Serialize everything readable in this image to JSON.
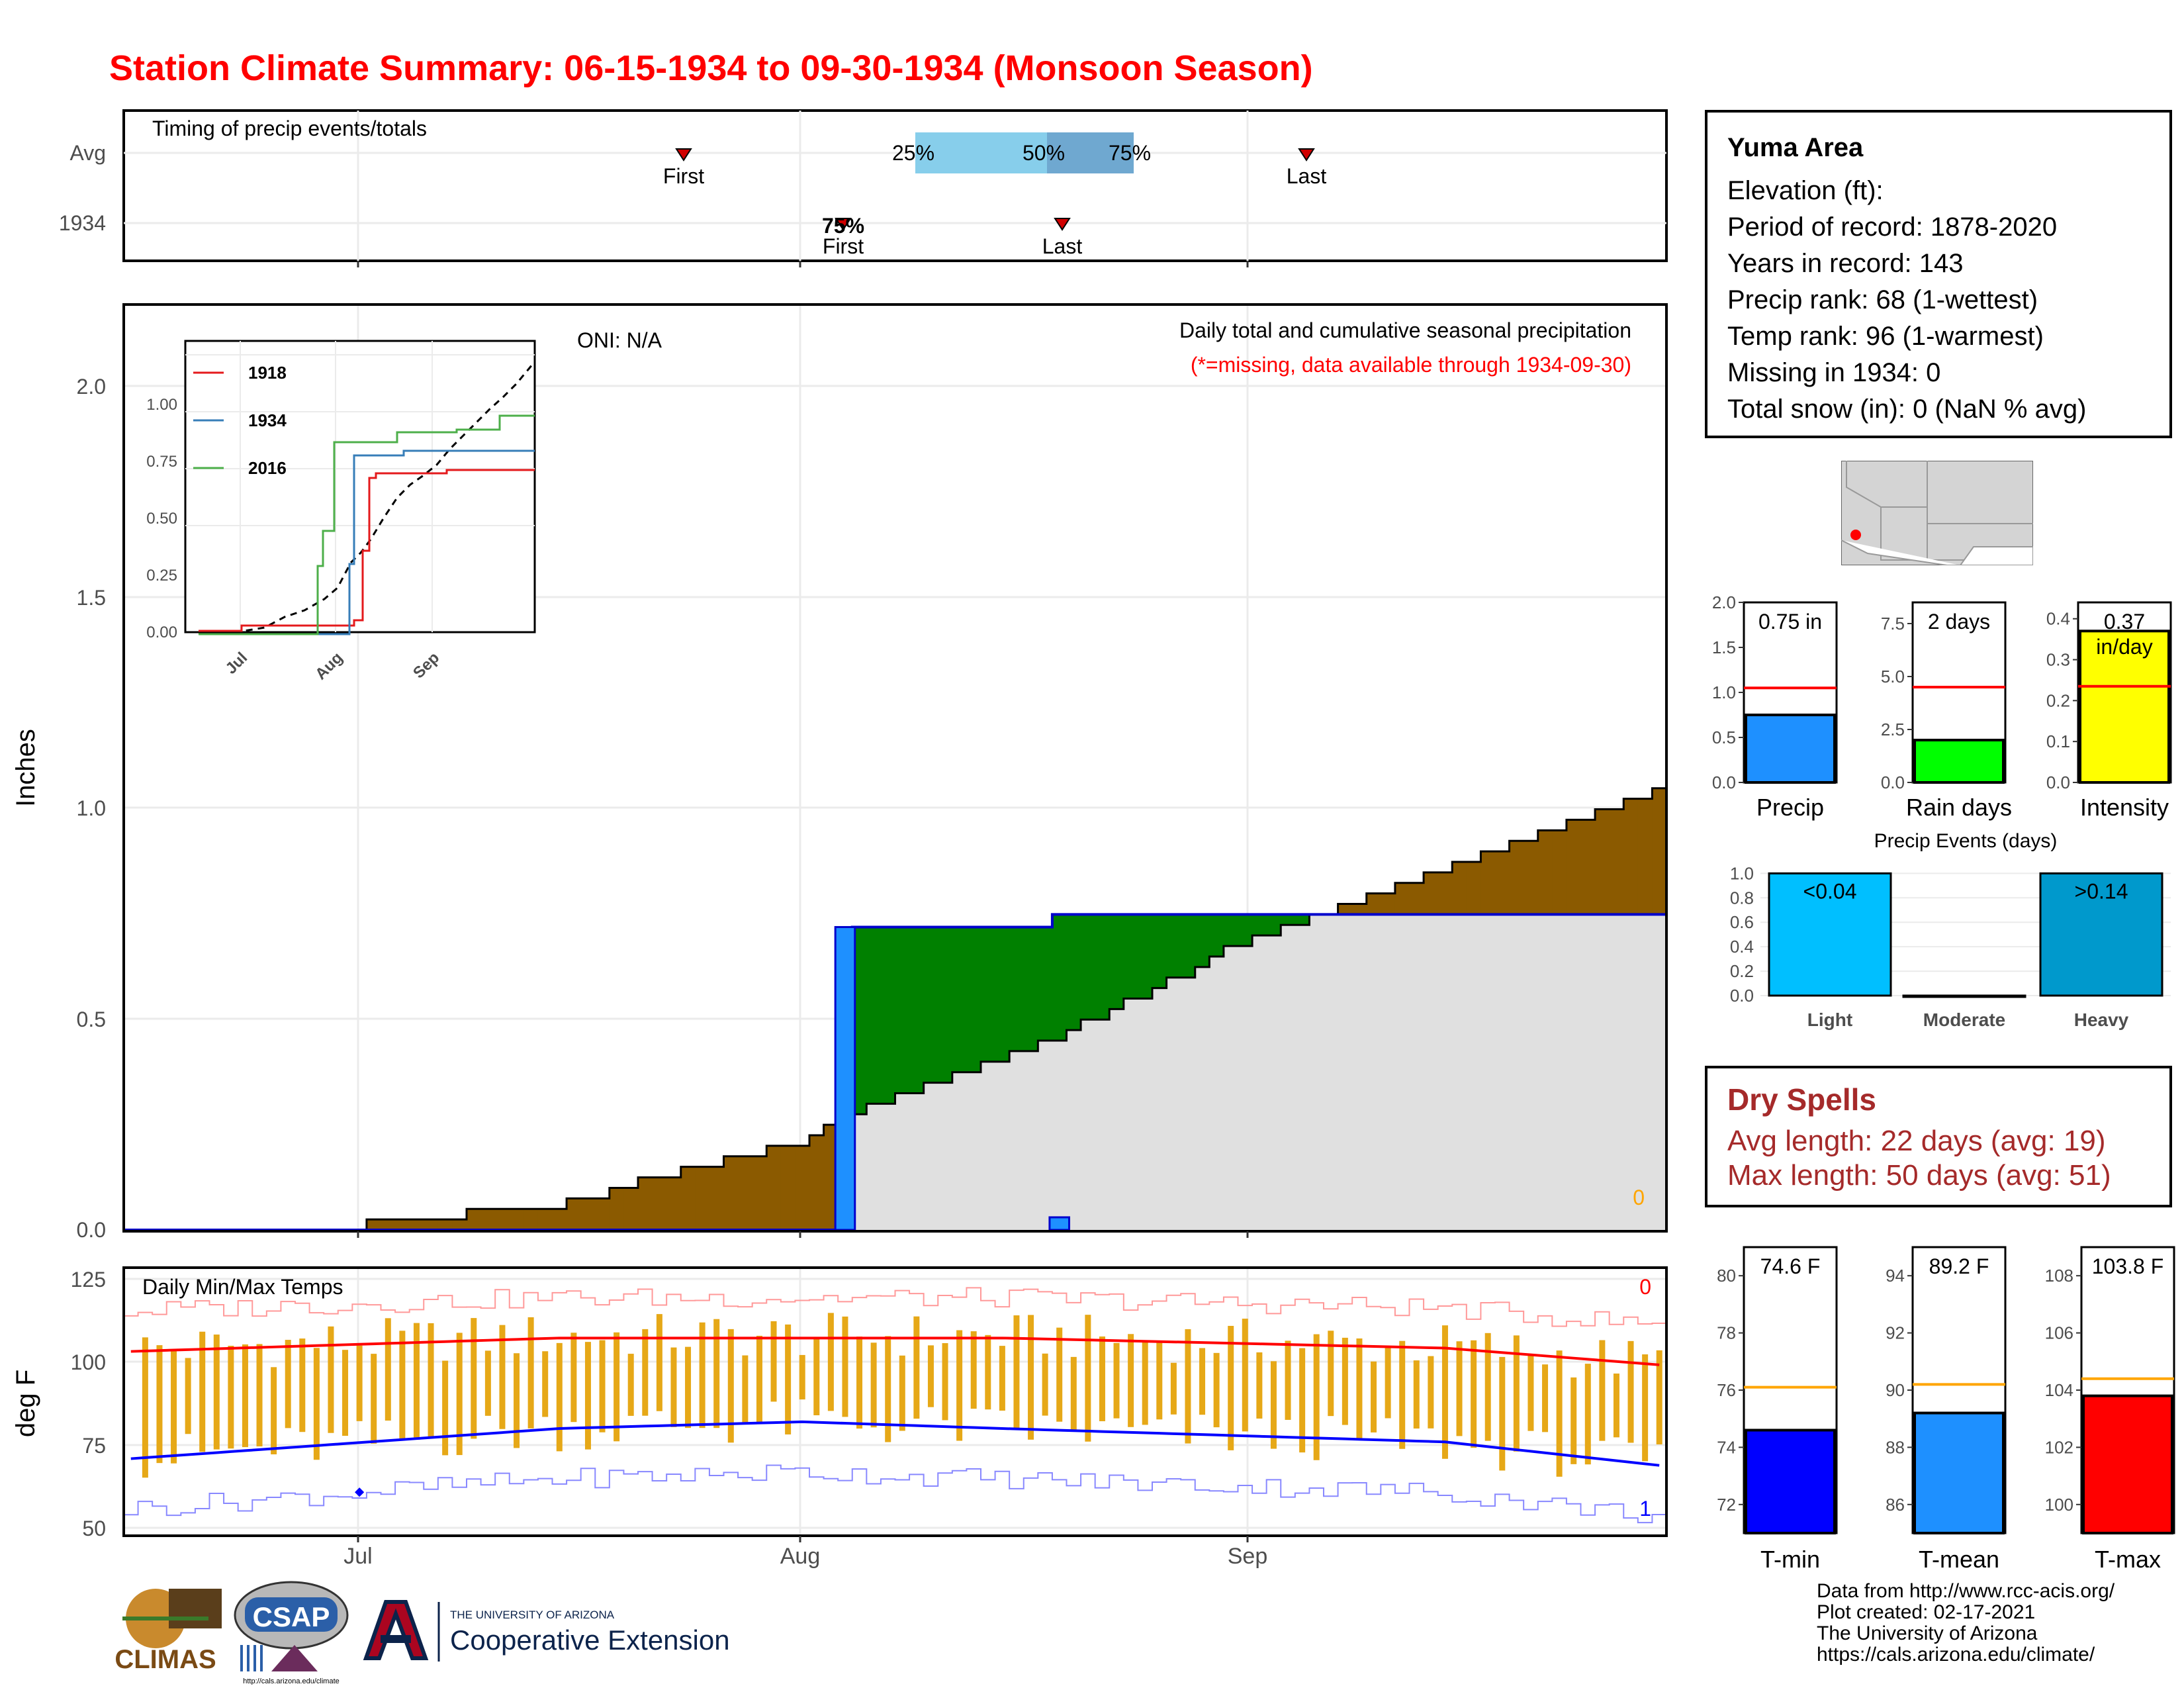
{
  "title": "Station Climate Summary: 06-15-1934 to 09-30-1934 (Monsoon Season)",
  "timing": {
    "label": "Timing of precip events/totals",
    "rows": [
      "Avg",
      "1934"
    ],
    "avg": {
      "first_label": "First",
      "last_label": "Last",
      "pct25": "25%",
      "pct50": "50%",
      "pct75": "75%"
    },
    "y1934": {
      "first_label": "First",
      "last_label": "Last",
      "overlap_label": "75%"
    }
  },
  "months": [
    "Jul",
    "Aug",
    "Sep"
  ],
  "precip_panel": {
    "ylabel": "Inches",
    "yticks": [
      "0.0",
      "0.5",
      "1.0",
      "1.5",
      "2.0"
    ],
    "oni": "ONI: N/A",
    "desc": "Daily total and cumulative seasonal precipitation",
    "missing_note": "(*=missing, data available through 1934-09-30)",
    "missing_count": "0"
  },
  "inset": {
    "yticks": [
      "0.00",
      "0.25",
      "0.50",
      "0.75",
      "1.00"
    ],
    "xticks": [
      "Jul",
      "Aug",
      "Sep"
    ],
    "legend": [
      {
        "name": "1918",
        "color": "#e41a1c"
      },
      {
        "name": "1934",
        "color": "#377eb8"
      },
      {
        "name": "2016",
        "color": "#4daf4a"
      }
    ]
  },
  "temp_panel": {
    "label": "Daily Min/Max Temps",
    "ylabel": "deg F",
    "yticks": [
      "50",
      "75",
      "100",
      "125"
    ],
    "max_missing": "0",
    "min_missing": "1"
  },
  "station": {
    "name": "Yuma Area",
    "elevation": "Elevation (ft):",
    "period": "Period of record: 1878-2020",
    "years": "Years in record: 143",
    "precip_rank": "Precip rank: 68 (1-wettest)",
    "temp_rank": "Temp rank: 96 (1-warmest)",
    "missing": "Missing in 1934: 0",
    "snow": "Total snow (in): 0 (NaN % avg)"
  },
  "summary_bars": [
    {
      "label": "Precip",
      "value_text": "0.75 in",
      "yticks": [
        "0.0",
        "0.5",
        "1.0",
        "1.5",
        "2.0"
      ],
      "ymin": 0,
      "ymax": 2.0,
      "value": 0.75,
      "avg": 1.05,
      "color": "#1e90ff"
    },
    {
      "label": "Rain days",
      "value_text": "2 days",
      "yticks": [
        "0.0",
        "2.5",
        "5.0",
        "7.5"
      ],
      "ymin": 0,
      "ymax": 8.5,
      "value": 2,
      "avg": 4.5,
      "color": "#00ff00"
    },
    {
      "label": "Intensity",
      "value_text": "0.37",
      "value_text2": "in/day",
      "yticks": [
        "0.0",
        "0.1",
        "0.2",
        "0.3",
        "0.4"
      ],
      "ymin": 0,
      "ymax": 0.44,
      "value": 0.37,
      "avg": 0.235,
      "color": "#ffff00"
    }
  ],
  "events": {
    "title": "Precip Events (days)",
    "yticks": [
      "0.0",
      "0.2",
      "0.4",
      "0.6",
      "0.8",
      "1.0"
    ],
    "bars": [
      {
        "label": "Light",
        "value_text": "<0.04",
        "value": 1,
        "color": "#00bfff"
      },
      {
        "label": "Moderate",
        "value_text": "",
        "value": 0,
        "color": "#00bfff"
      },
      {
        "label": "Heavy",
        "value_text": ">0.14",
        "value": 1,
        "color": "#0099cc"
      }
    ]
  },
  "dry_spells": {
    "title": "Dry Spells",
    "avg": "Avg length: 22 days (avg: 19)",
    "max": "Max length: 50 days (avg: 51)"
  },
  "temp_bars": [
    {
      "label": "T-min",
      "value_text": "74.6 F",
      "yticks": [
        "72",
        "74",
        "76",
        "78",
        "80"
      ],
      "ymin": 71,
      "ymax": 81,
      "value": 74.6,
      "avg": 76.1,
      "color": "#0000ff"
    },
    {
      "label": "T-mean",
      "value_text": "89.2 F",
      "yticks": [
        "86",
        "88",
        "90",
        "92",
        "94"
      ],
      "ymin": 85,
      "ymax": 95,
      "value": 89.2,
      "avg": 90.2,
      "color": "#1e90ff"
    },
    {
      "label": "T-max",
      "value_text": "103.8 F",
      "yticks": [
        "100",
        "102",
        "104",
        "106",
        "108"
      ],
      "ymin": 99,
      "ymax": 109,
      "value": 103.8,
      "avg": 104.4,
      "color": "#ff0000"
    }
  ],
  "credits": [
    "Data from http://www.rcc-acis.org/",
    "Plot created: 02-17-2021",
    "The University of Arizona",
    "https://cals.arizona.edu/climate/"
  ],
  "logos": {
    "climas": "CLIMAS",
    "csap": "CSAP",
    "csap_url": "http://cals.arizona.edu/climate",
    "ua_small": "THE UNIVERSITY OF ARIZONA",
    "coop": "Cooperative Extension"
  },
  "chart_data": [
    {
      "type": "area",
      "title": "Daily total and cumulative seasonal precipitation",
      "ylabel": "Inches",
      "ylim": [
        0,
        2.2
      ],
      "x_start": "1934-06-15",
      "x_end": "1934-09-30",
      "series": [
        {
          "name": "1934 cumulative",
          "x": [
            "1934-06-15",
            "1934-08-04",
            "1934-08-05",
            "1934-08-19",
            "1934-09-30"
          ],
          "values": [
            0,
            0,
            0.72,
            0.75,
            0.75
          ]
        },
        {
          "name": "avg cumulative",
          "x": [
            "1934-06-15",
            "1934-07-01",
            "1934-07-15",
            "1934-08-01",
            "1934-08-05",
            "1934-08-20",
            "1934-09-01",
            "1934-09-15",
            "1934-09-30"
          ],
          "values": [
            0,
            0.01,
            0.06,
            0.21,
            0.28,
            0.47,
            0.68,
            0.86,
            1.05
          ]
        }
      ],
      "daily": [
        {
          "x": "1934-08-04",
          "value": 0.72
        },
        {
          "x": "1934-08-19",
          "value": 0.03
        }
      ]
    },
    {
      "type": "line",
      "title": "Daily Min/Max Temps",
      "ylabel": "deg F",
      "ylim": [
        47,
        127
      ],
      "series": [
        {
          "name": "avg max",
          "x": [
            "1934-06-15",
            "1934-07-15",
            "1934-08-15",
            "1934-09-15",
            "1934-09-30"
          ],
          "values": [
            102,
            106,
            106,
            103,
            98
          ]
        },
        {
          "name": "avg min",
          "x": [
            "1934-06-15",
            "1934-07-15",
            "1934-08-01",
            "1934-08-15",
            "1934-09-15",
            "1934-09-30"
          ],
          "values": [
            70,
            79,
            81,
            79,
            75,
            68
          ]
        }
      ]
    }
  ]
}
